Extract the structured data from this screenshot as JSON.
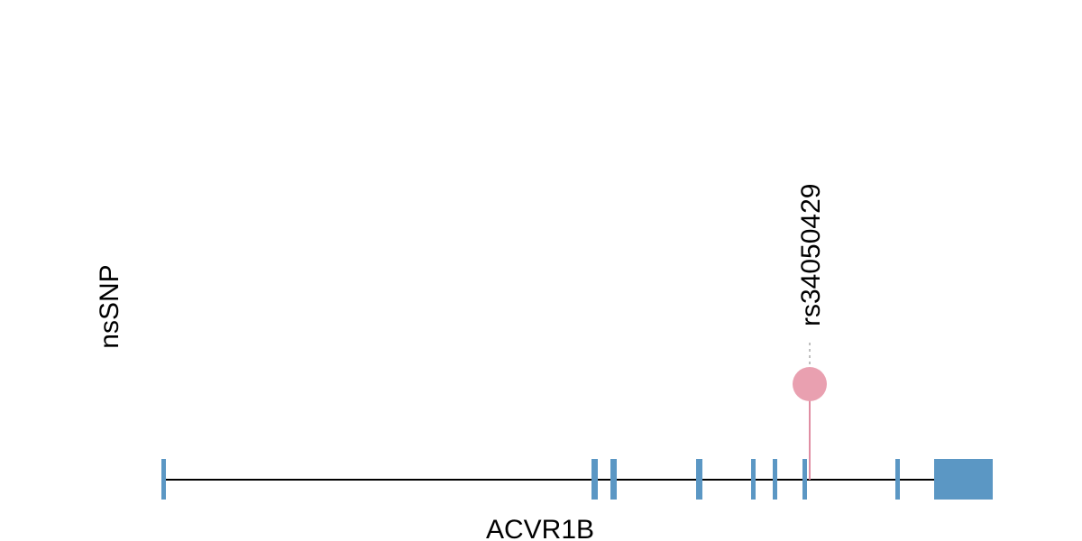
{
  "track": {
    "label": "nsSNP"
  },
  "gene": {
    "name": "ACVR1B",
    "color": "#5b97c4",
    "exons": [
      {
        "id": "exon-1"
      },
      {
        "id": "exon-2"
      },
      {
        "id": "exon-3"
      },
      {
        "id": "exon-4"
      },
      {
        "id": "exon-5"
      },
      {
        "id": "exon-6"
      },
      {
        "id": "exon-7"
      },
      {
        "id": "exon-8"
      },
      {
        "id": "exon-9-last"
      }
    ]
  },
  "snps": [
    {
      "id": "rs34050429",
      "color": "#e9a0b0",
      "stem_color": "#e08ea3",
      "connector_color": "#aaaaaa"
    }
  ]
}
